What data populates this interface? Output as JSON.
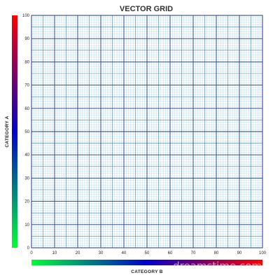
{
  "chart_data": {
    "type": "table",
    "title": "VECTOR GRID",
    "xlabel": "CATEGORY B",
    "ylabel": "CATEGORY A",
    "xlim": [
      0,
      100
    ],
    "ylim": [
      0,
      100
    ],
    "x_ticks": [
      0,
      10,
      20,
      30,
      40,
      50,
      60,
      70,
      80,
      90,
      100
    ],
    "y_ticks": [
      0,
      10,
      20,
      30,
      40,
      50,
      60,
      70,
      80,
      90,
      100
    ],
    "grid": {
      "major_step": 10,
      "mid_step": 5,
      "minor_step": 1,
      "major_color": "#1a3a8a",
      "mid_color": "#3f7fc0",
      "minor_color": "#a8d4ee"
    },
    "gradient_colors": {
      "y_axis_bar": [
        "#00ff33",
        "#0000cc",
        "#ff0000"
      ],
      "x_axis_bar": [
        "#00ff33",
        "#0000cc",
        "#ff0000"
      ]
    }
  },
  "watermark": "dreamstime.com"
}
